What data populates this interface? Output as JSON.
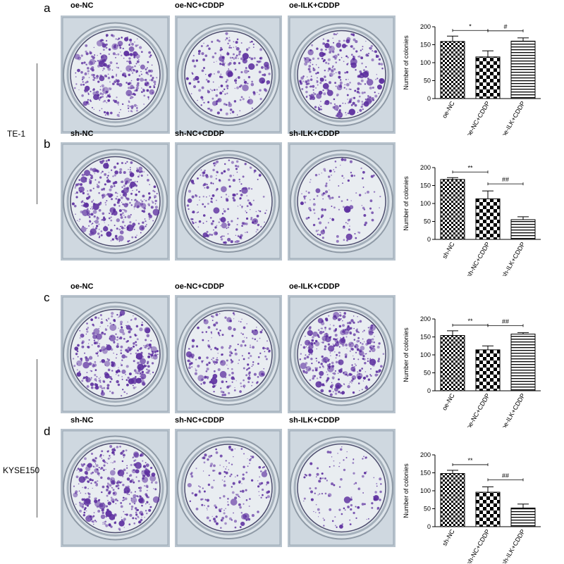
{
  "cell_lines": [
    "TE-1",
    "KYSE150"
  ],
  "panels": [
    {
      "letter": "a",
      "conditions": [
        "oe-NC",
        "oe-NC+CDDP",
        "oe-ILK+CDDP"
      ],
      "densities": [
        0.9,
        0.6,
        0.8
      ]
    },
    {
      "letter": "b",
      "conditions": [
        "sh-NC",
        "sh-NC+CDDP",
        "sh-ILK+CDDP"
      ],
      "densities": [
        0.95,
        0.55,
        0.35
      ]
    },
    {
      "letter": "c",
      "conditions": [
        "oe-NC",
        "oe-NC+CDDP",
        "oe-ILK+CDDP"
      ],
      "densities": [
        0.9,
        0.6,
        0.95
      ]
    },
    {
      "letter": "d",
      "conditions": [
        "sh-NC",
        "sh-NC+CDDP",
        "sh-ILK+CDDP"
      ],
      "densities": [
        0.95,
        0.45,
        0.3
      ]
    }
  ],
  "colors": {
    "stain": "#5b2d9e",
    "plate_bg": "#c9d3dc",
    "plate_inner": "#e9edf1"
  },
  "chart_data": [
    {
      "type": "bar",
      "panel": "a",
      "categories": [
        "oe-NC",
        "oe-NC+CDDP",
        "oe-ILK+CDDP"
      ],
      "values": [
        159,
        116,
        160
      ],
      "errors": [
        15,
        17,
        9
      ],
      "patterns": [
        "checker-small",
        "checker-large",
        "horizontal-lines"
      ],
      "ylabel": "Number of colonies",
      "ylim": [
        0,
        200
      ],
      "yticks": [
        0,
        50,
        100,
        150,
        200
      ],
      "significance": [
        {
          "from": 0,
          "to": 1,
          "label": "*"
        },
        {
          "from": 1,
          "to": 2,
          "label": "#"
        }
      ]
    },
    {
      "type": "bar",
      "panel": "b",
      "categories": [
        "sh-NC",
        "sh-NC+CDDP",
        "sh-ILK+CDDP"
      ],
      "values": [
        167,
        113,
        55
      ],
      "errors": [
        5,
        22,
        8
      ],
      "patterns": [
        "checker-small",
        "checker-large",
        "horizontal-lines"
      ],
      "ylabel": "Number of colonies",
      "ylim": [
        0,
        200
      ],
      "yticks": [
        0,
        50,
        100,
        150,
        200
      ],
      "significance": [
        {
          "from": 0,
          "to": 1,
          "label": "**"
        },
        {
          "from": 1,
          "to": 2,
          "label": "##"
        }
      ]
    },
    {
      "type": "bar",
      "panel": "c",
      "categories": [
        "oe-NC",
        "oe-NC+CDDP",
        "oe-ILK+CDDP"
      ],
      "values": [
        154,
        114,
        158
      ],
      "errors": [
        13,
        11,
        4
      ],
      "patterns": [
        "checker-small",
        "checker-large",
        "horizontal-lines"
      ],
      "ylabel": "Number of colonies",
      "ylim": [
        0,
        200
      ],
      "yticks": [
        0,
        50,
        100,
        150,
        200
      ],
      "significance": [
        {
          "from": 0,
          "to": 1,
          "label": "**"
        },
        {
          "from": 1,
          "to": 2,
          "label": "##"
        }
      ]
    },
    {
      "type": "bar",
      "panel": "d",
      "categories": [
        "sh-NC",
        "sh-NC+CDDP",
        "sh-ILK+CDDP"
      ],
      "values": [
        148,
        96,
        52
      ],
      "errors": [
        9,
        15,
        11
      ],
      "patterns": [
        "checker-small",
        "checker-large",
        "horizontal-lines"
      ],
      "ylabel": "Number of colonies",
      "ylim": [
        0,
        200
      ],
      "yticks": [
        0,
        50,
        100,
        150,
        200
      ],
      "significance": [
        {
          "from": 0,
          "to": 1,
          "label": "**"
        },
        {
          "from": 1,
          "to": 2,
          "label": "##"
        }
      ]
    }
  ]
}
